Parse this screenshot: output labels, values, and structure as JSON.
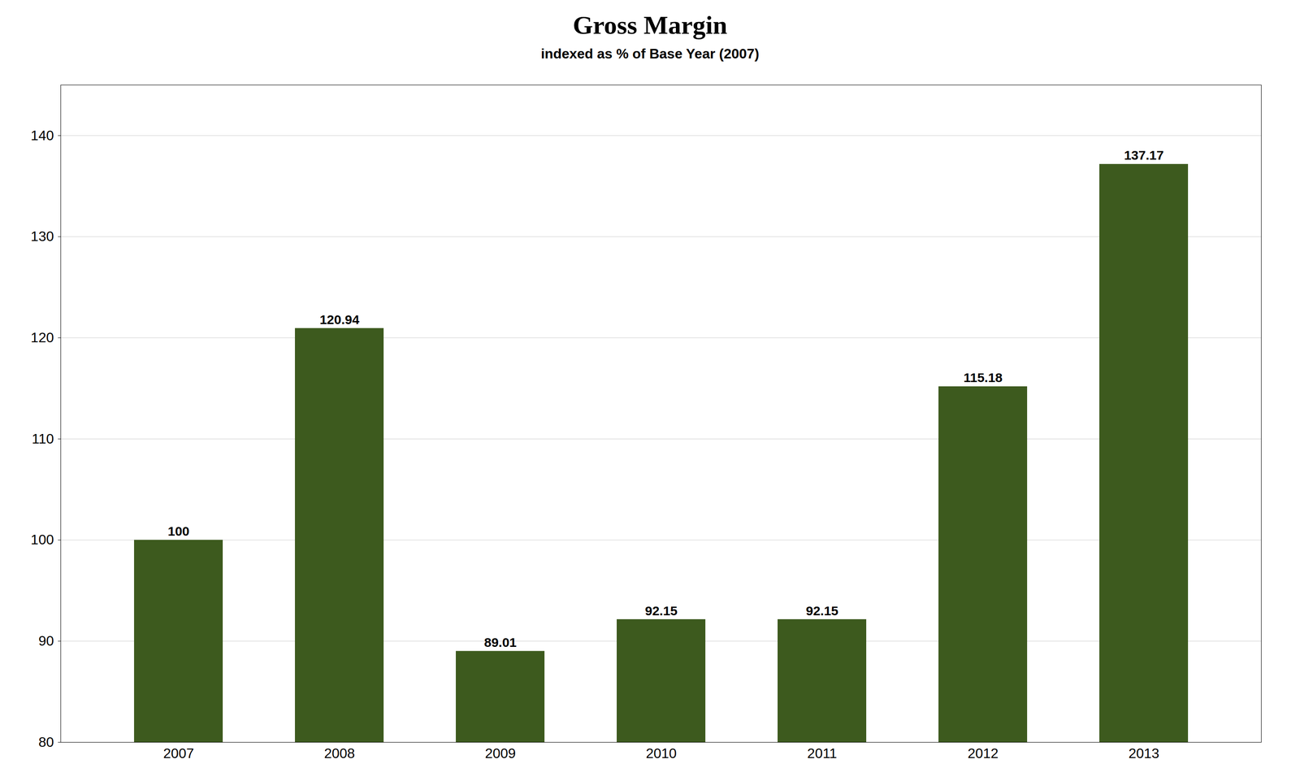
{
  "chart_data": {
    "type": "bar",
    "title": "Gross Margin",
    "subtitle": "indexed as % of Base Year (2007)",
    "categories": [
      "2007",
      "2008",
      "2009",
      "2010",
      "2011",
      "2012",
      "2013"
    ],
    "values": [
      100,
      120.94,
      89.01,
      92.15,
      92.15,
      115.18,
      137.17
    ],
    "color": "#3d5a1e",
    "ylim": [
      80,
      145
    ],
    "yticks": [
      80,
      90,
      100,
      110,
      120,
      130,
      140
    ],
    "grid": true,
    "data_labels": true
  }
}
